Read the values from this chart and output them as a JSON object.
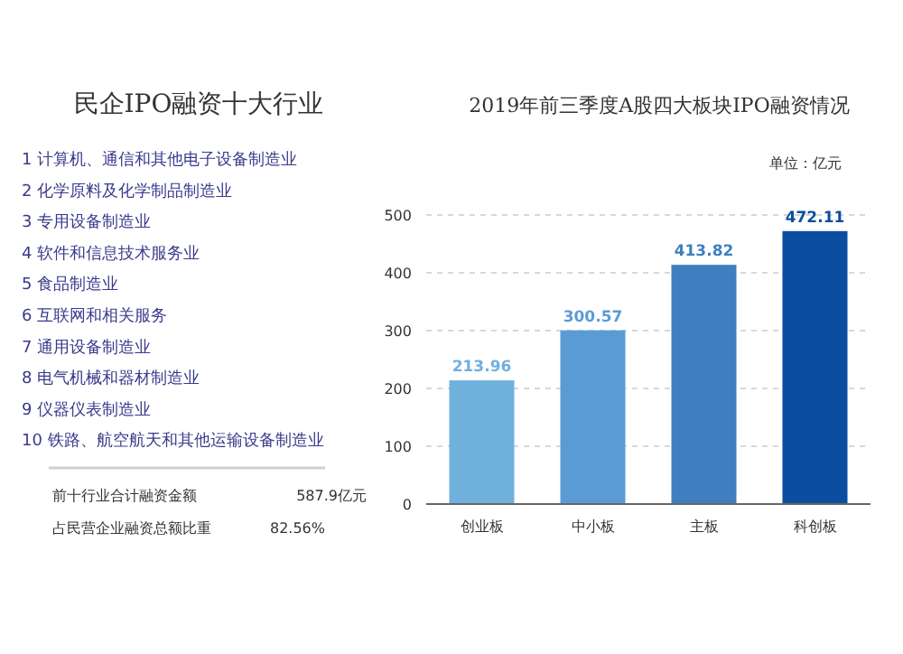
{
  "chart_data": [
    {
      "type": "other",
      "title": "民企IPO融资十大行业",
      "color": "#3a3a8c",
      "annotations": [
        "1 计算机、通信和其他电子设备制造业",
        "2 化学原料及化学制品制造业",
        "3 专用设备制造业",
        "4 软件和信息技术服务业",
        "5 食品制造业",
        "6 互联网和相关服务",
        "7 通用设备制造业",
        "8 电气机械和器材制造业",
        "9 仪器仪表制造业",
        "10 铁路、航空航天和其他运输设备制造业",
        "前十行业合计融资金额",
        "587.9亿元",
        "占民营企业融资总额比重",
        "82.56%"
      ]
    },
    {
      "type": "bar",
      "title": "2019年前三季度A股四大板块IPO融资情况",
      "categories": [
        "创业板",
        "中小板",
        "主板",
        "科创板"
      ],
      "values": [
        213.96,
        300.57,
        413.82,
        472.11
      ],
      "colors": [
        "#6fb0dd",
        "#5b9bd5",
        "#3f7fc1",
        "#0b4e9f"
      ],
      "ylim": [
        0,
        500
      ],
      "yticks": [
        0,
        100,
        200,
        300,
        400,
        500
      ],
      "grid": "y",
      "data_labels": true,
      "annotations": [
        "单位：亿元"
      ]
    }
  ]
}
